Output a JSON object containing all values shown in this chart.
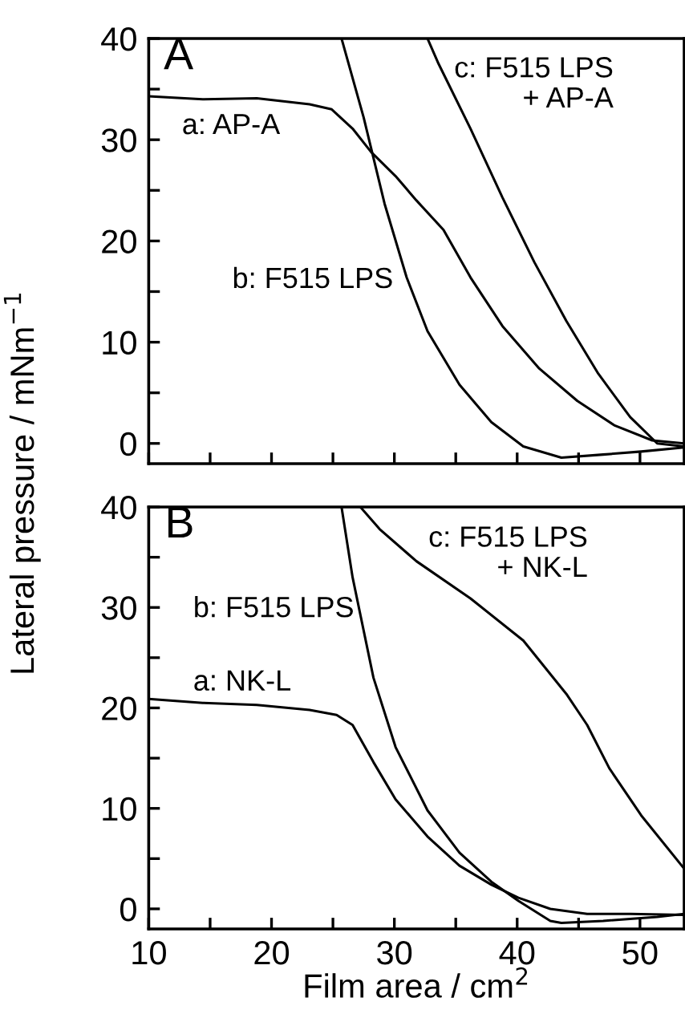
{
  "chart_data": [
    {
      "type": "line",
      "ylabel": "Lateral pressure / mNm$^{−1}$",
      "xlim": [
        10,
        53.6
      ],
      "ylim": [
        -2,
        40
      ],
      "xticks": [
        {
          "value": 10,
          "label": null
        },
        {
          "value": 15,
          "label": null
        },
        {
          "value": 20,
          "label": null
        },
        {
          "value": 25,
          "label": null
        },
        {
          "value": 30,
          "label": null
        },
        {
          "value": 35,
          "label": null
        },
        {
          "value": 40,
          "label": null
        },
        {
          "value": 45,
          "label": null
        },
        {
          "value": 50,
          "label": null
        }
      ],
      "yticks": [
        0,
        {
          "value": 5,
          "label": null
        },
        10,
        {
          "value": 15,
          "label": null
        },
        20,
        {
          "value": 25,
          "label": null
        },
        30,
        {
          "value": 35,
          "label": null
        },
        40
      ],
      "tick_labels": "y",
      "grid": false,
      "legend": false,
      "marker": "none",
      "line_style": "solid",
      "series": [
        {
          "color": "#000000",
          "x": [
            10,
            14.4,
            18.8,
            23.1,
            24.9,
            26.6,
            28.1,
            30.1,
            31.8,
            34.0,
            36.2,
            38.8,
            41.8,
            44.9,
            47.9,
            51.0,
            53.6
          ],
          "values": [
            34.3,
            34.0,
            34.1,
            33.5,
            33.0,
            31.1,
            28.8,
            26.4,
            24.0,
            21.1,
            16.4,
            11.6,
            7.4,
            4.2,
            1.8,
            0.3,
            0
          ]
        },
        {
          "color": "#000000",
          "x": [
            25.7,
            27.5,
            29.2,
            31.0,
            32.7,
            35.3,
            37.9,
            40.5,
            43.6,
            47.0,
            50.1,
            53.6
          ],
          "values": [
            40,
            32.2,
            23.7,
            16.4,
            11.1,
            5.8,
            2.1,
            -0.3,
            -1.4,
            -1.1,
            -0.8,
            -0.4
          ]
        },
        {
          "color": "#000000",
          "x": [
            32.7,
            33.6,
            36.2,
            38.8,
            41.4,
            44.0,
            46.6,
            49.2,
            51.4,
            53.6
          ],
          "values": [
            40,
            37.5,
            31.1,
            24.3,
            17.9,
            12.1,
            6.9,
            2.6,
            0,
            -0.3
          ]
        }
      ],
      "annotations": [
        "A",
        "a: AP-A",
        "b: F515 LPS",
        "c: F515 LPS\n+ AP-A"
      ]
    },
    {
      "type": "line",
      "xlabel": "Film area / cm$^{2}$",
      "xlim": [
        10,
        53.6
      ],
      "ylim": [
        -2,
        40
      ],
      "xticks": [
        10,
        {
          "value": 15,
          "label": null
        },
        20,
        {
          "value": 25,
          "label": null
        },
        30,
        {
          "value": 35,
          "label": null
        },
        40,
        {
          "value": 45,
          "label": null
        },
        50
      ],
      "yticks": [
        0,
        {
          "value": 5,
          "label": null
        },
        10,
        {
          "value": 15,
          "label": null
        },
        20,
        {
          "value": 25,
          "label": null
        },
        30,
        {
          "value": 35,
          "label": null
        },
        40
      ],
      "grid": false,
      "legend": false,
      "marker": "none",
      "line_style": "solid",
      "series": [
        {
          "color": "#000000",
          "x": [
            10,
            14.4,
            18.8,
            23.1,
            25.3,
            26.6,
            28.3,
            30.1,
            32.7,
            35.3,
            37.9,
            40.1,
            42.7,
            45.7,
            49.2,
            53.6
          ],
          "values": [
            20.9,
            20.5,
            20.3,
            19.8,
            19.3,
            18.3,
            14.6,
            10.9,
            7.2,
            4.3,
            2.4,
            1.1,
            0,
            -0.5,
            -0.5,
            -0.6
          ]
        },
        {
          "color": "#000000",
          "x": [
            25.7,
            26.6,
            28.3,
            30.1,
            32.7,
            35.3,
            37.9,
            40.1,
            42.7,
            43.6,
            47.0,
            51.4,
            53.6
          ],
          "values": [
            40,
            33.0,
            23.0,
            16.1,
            9.8,
            5.6,
            2.7,
            0.8,
            -1.2,
            -1.4,
            -1.2,
            -0.8,
            -0.5
          ]
        },
        {
          "color": "#000000",
          "x": [
            27.3,
            28.8,
            31.8,
            36.2,
            40.5,
            44.0,
            45.7,
            47.5,
            50.1,
            53.6
          ],
          "values": [
            39.9,
            37.8,
            34.6,
            30.9,
            26.7,
            21.4,
            18.3,
            14.0,
            9.3,
            4.0
          ]
        }
      ],
      "annotations": [
        "B",
        "b: F515 LPS",
        "a: NK-L",
        "c: F515 LPS\n+ NK-L"
      ]
    }
  ]
}
